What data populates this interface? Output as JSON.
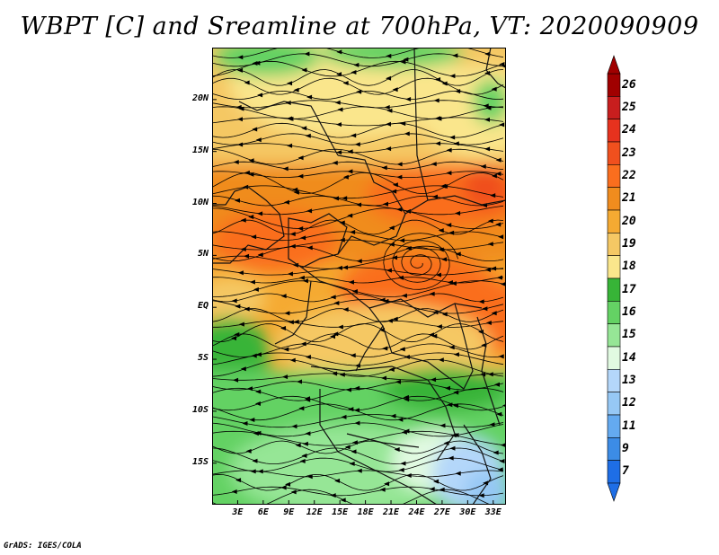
{
  "title": "WBPT [C] and Sreamline at 700hPa, VT: 2020090909",
  "credit": "GrADS: IGES/COLA",
  "lat_ticks": [
    {
      "label": "20N",
      "lat": 20
    },
    {
      "label": "15N",
      "lat": 15
    },
    {
      "label": "10N",
      "lat": 10
    },
    {
      "label": "5N",
      "lat": 5
    },
    {
      "label": "EQ",
      "lat": 0
    },
    {
      "label": "5S",
      "lat": -5
    },
    {
      "label": "10S",
      "lat": -10
    },
    {
      "label": "15S",
      "lat": -15
    }
  ],
  "lon_ticks": [
    {
      "label": "3E",
      "lon": 3
    },
    {
      "label": "6E",
      "lon": 6
    },
    {
      "label": "9E",
      "lon": 9
    },
    {
      "label": "12E",
      "lon": 12
    },
    {
      "label": "15E",
      "lon": 15
    },
    {
      "label": "18E",
      "lon": 18
    },
    {
      "label": "21E",
      "lon": 21
    },
    {
      "label": "24E",
      "lon": 24
    },
    {
      "label": "27E",
      "lon": 27
    },
    {
      "label": "30E",
      "lon": 30
    },
    {
      "label": "33E",
      "lon": 33
    }
  ],
  "colorbar": {
    "levels": [
      "26",
      "25",
      "24",
      "23",
      "22",
      "21",
      "20",
      "19",
      "18",
      "17",
      "16",
      "15",
      "14",
      "13",
      "12",
      "11",
      "9",
      "7"
    ],
    "colors": [
      "#a00000",
      "#c81e1e",
      "#e6321e",
      "#f0501e",
      "#fa6e1e",
      "#f08c1e",
      "#f5aa32",
      "#f5c864",
      "#fae68c",
      "#37b437",
      "#64d264",
      "#96e696",
      "#e1fae1",
      "#b4d7fa",
      "#96c8f5",
      "#64aaf0",
      "#3c8ce6",
      "#1e6ee6"
    ]
  },
  "chart_data": {
    "type": "heatmap",
    "title": "WBPT [C] and Sreamline at 700hPa, VT: 2020090909",
    "variable": "WBPT [C]",
    "level": "700hPa",
    "valid_time": "2020090909",
    "lon_range": [
      0,
      34.5
    ],
    "lat_range": [
      -19,
      25
    ],
    "color_levels": [
      7,
      9,
      11,
      12,
      13,
      14,
      15,
      16,
      17,
      18,
      19,
      20,
      21,
      22,
      23,
      24,
      25,
      26
    ],
    "regions": [
      {
        "lon": [
          4,
          26
        ],
        "lat": [
          21,
          25
        ],
        "value": 17
      },
      {
        "lon": [
          22,
          34.5
        ],
        "lat": [
          14,
          25
        ],
        "value": 19
      },
      {
        "lon": [
          0,
          34.5
        ],
        "lat": [
          12,
          20
        ],
        "value": 20
      },
      {
        "lon": [
          0,
          34.5
        ],
        "lat": [
          2,
          12
        ],
        "value": 21
      },
      {
        "lon": [
          18,
          30
        ],
        "lat": [
          11,
          14
        ],
        "value": 22
      },
      {
        "lon": [
          30,
          34.5
        ],
        "lat": [
          9,
          12
        ],
        "value": 23
      },
      {
        "lon": [
          0,
          6
        ],
        "lat": [
          -2,
          2
        ],
        "value": 19
      },
      {
        "lon": [
          0,
          9
        ],
        "lat": [
          -8,
          -2
        ],
        "value": 17
      },
      {
        "lon": [
          6,
          26
        ],
        "lat": [
          -7,
          0
        ],
        "value": 20
      },
      {
        "lon": [
          0,
          34.5
        ],
        "lat": [
          -14,
          -8
        ],
        "value": 17
      },
      {
        "lon": [
          0,
          34.5
        ],
        "lat": [
          -19,
          -14
        ],
        "value": 16
      },
      {
        "lon": [
          23,
          34.5
        ],
        "lat": [
          -18,
          -13
        ],
        "value": 15
      },
      {
        "lon": [
          26,
          34.5
        ],
        "lat": [
          -19,
          -15
        ],
        "value": 14
      }
    ],
    "grid": false
  }
}
